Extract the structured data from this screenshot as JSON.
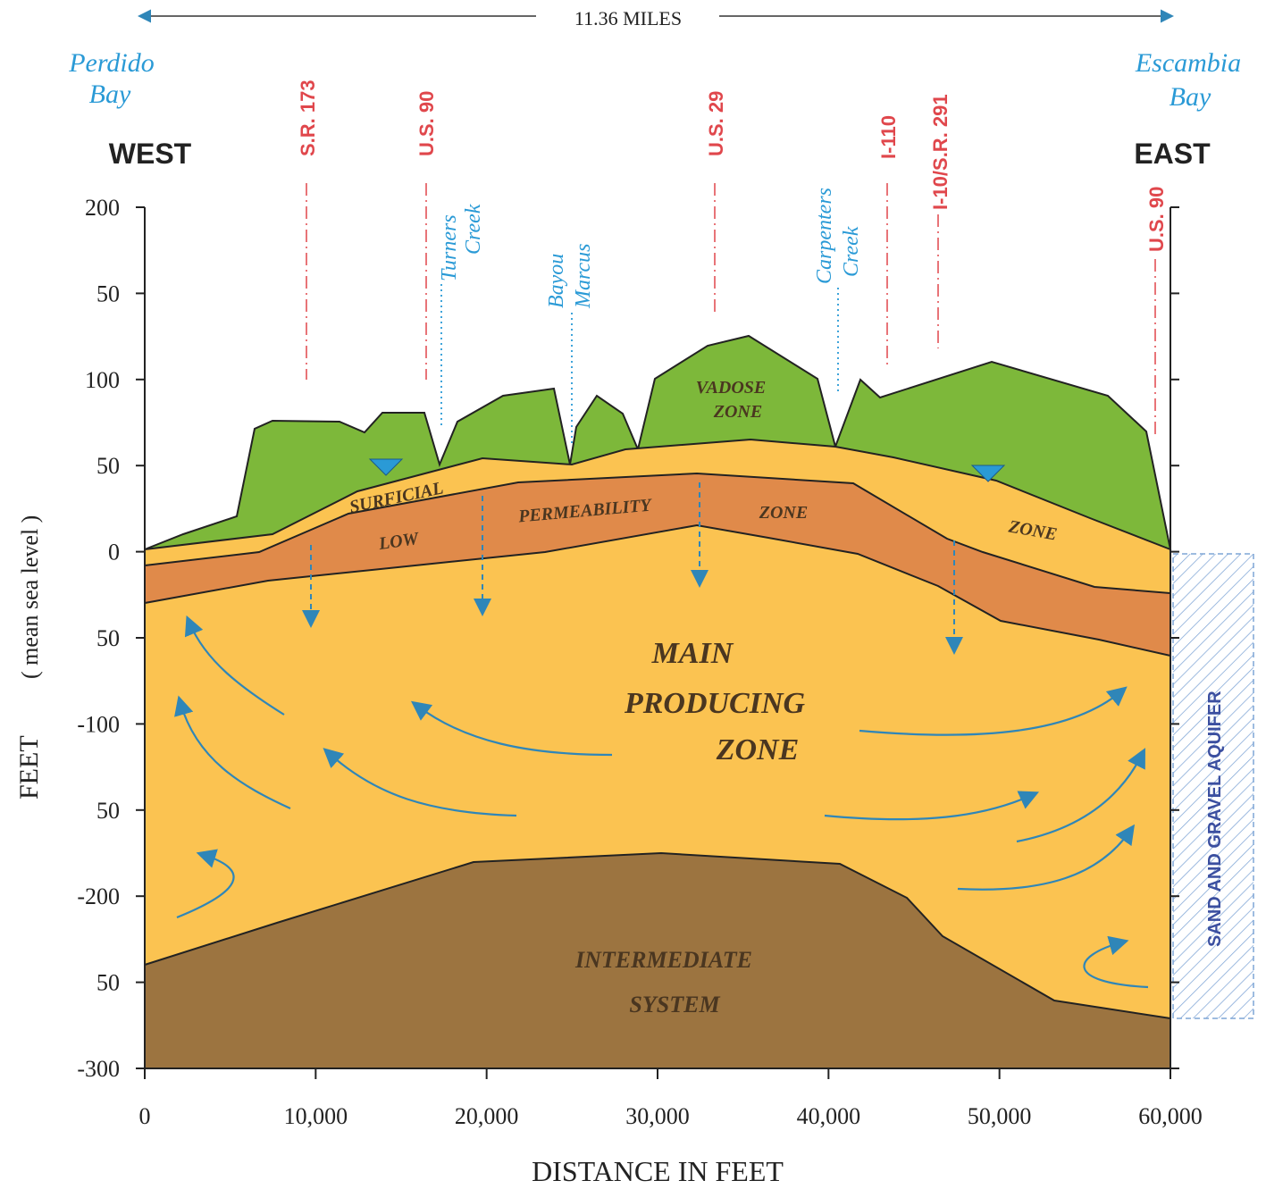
{
  "header": {
    "span_label": "11.36 MILES",
    "west": "WEST",
    "east": "EAST",
    "west_water": [
      "Perdido",
      "Bay"
    ],
    "east_water": [
      "Escambia",
      "Bay"
    ]
  },
  "roads": [
    "S.R. 173",
    "U.S. 90",
    "U.S. 29",
    "I-110",
    "I-10/S.R. 291",
    "U.S. 90"
  ],
  "creeks": [
    [
      "Turners",
      "Creek"
    ],
    [
      "Bayou",
      "Marcus"
    ],
    [
      "Carpenters",
      "Creek"
    ]
  ],
  "zones": {
    "vadose": [
      "VADOSE",
      "ZONE"
    ],
    "surficial": [
      "SURFICIAL",
      "ZONE"
    ],
    "low_permeability": [
      "LOW",
      "PERMEABILITY",
      "ZONE"
    ],
    "main": [
      "MAIN",
      "PRODUCING",
      "ZONE"
    ],
    "intermediate": [
      "INTERMEDIATE",
      "SYSTEM"
    ],
    "sand_gravel": "SAND AND GRAVEL AQUIFER"
  },
  "axes": {
    "y_label": [
      "FEET",
      "( mean sea level )"
    ],
    "x_label": "DISTANCE IN FEET",
    "ylim": [
      -300,
      200
    ],
    "xlim": [
      0,
      60000
    ],
    "yticks": [
      200,
      {
        "value": 150,
        "label": "50"
      },
      100,
      {
        "value": 50,
        "label": "50"
      },
      0,
      {
        "value": -50,
        "label": "50"
      },
      -100,
      {
        "value": -150,
        "label": "50"
      },
      -200,
      {
        "value": -250,
        "label": "50"
      },
      -300
    ],
    "xticks": [
      0,
      {
        "value": 10000,
        "label": "10,000"
      },
      {
        "value": 20000,
        "label": "20,000"
      },
      {
        "value": 30000,
        "label": "30,000"
      },
      {
        "value": 40000,
        "label": "40,000"
      },
      {
        "value": 50000,
        "label": "50,000"
      },
      {
        "value": 60000,
        "label": "60,000"
      }
    ]
  }
}
